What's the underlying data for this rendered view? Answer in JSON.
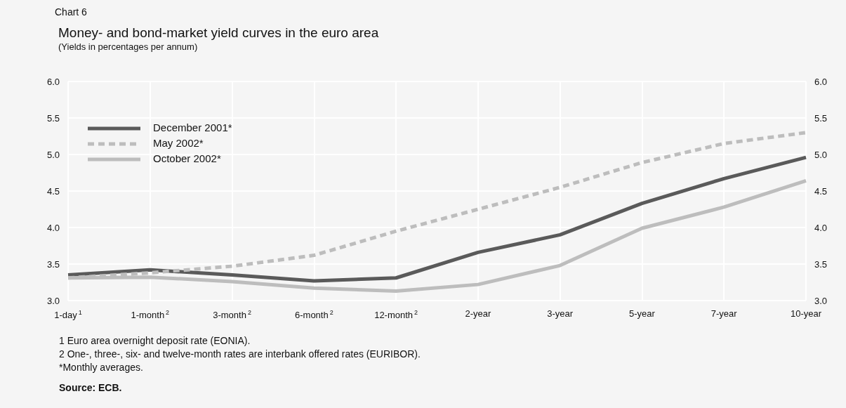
{
  "chart_data": {
    "type": "line",
    "title": "Money- and bond-market yield curves in the euro area",
    "subtitle": "(Yields in percentages per annum)",
    "categories": [
      "1-day$^{1}$",
      "1-month$^{2}$",
      "3-month$^{2}$",
      "6-month$^{2}$",
      "12-month$^{2}$",
      "2-year",
      "3-year",
      "5-year",
      "7-year",
      "10-year"
    ],
    "series": [
      {
        "name": "December 2001*",
        "color": "#5a5a5a",
        "line_style": "solid",
        "values": [
          3.35,
          3.42,
          3.35,
          3.27,
          3.31,
          3.66,
          3.9,
          4.33,
          4.67,
          4.96
        ]
      },
      {
        "name": "May 2002*",
        "color": "#bdbdbd",
        "line_style": "dashed",
        "values": [
          3.31,
          3.38,
          3.47,
          3.62,
          3.95,
          4.25,
          4.55,
          4.89,
          5.15,
          5.3
        ]
      },
      {
        "name": "October 2002*",
        "color": "#bdbdbd",
        "line_style": "solid",
        "values": [
          3.31,
          3.32,
          3.26,
          3.17,
          3.13,
          3.22,
          3.48,
          3.99,
          4.28,
          4.64
        ]
      }
    ],
    "ylim": [
      3.0,
      6.0
    ],
    "yticks": [
      {
        "value": 3.0,
        "label": "3.0"
      },
      {
        "value": 3.5,
        "label": "3.5"
      },
      {
        "value": 4.0,
        "label": "4.0"
      },
      {
        "value": 4.5,
        "label": "4.5"
      },
      {
        "value": 5.0,
        "label": "5.0"
      },
      {
        "value": 5.5,
        "label": "5.5"
      },
      {
        "value": 6.0,
        "label": "6.0"
      }
    ],
    "y2lim": [
      3.0,
      6.0
    ],
    "y2ticks": [
      {
        "value": 3.0,
        "label": "3.0"
      },
      {
        "value": 3.5,
        "label": "3.5"
      },
      {
        "value": 4.0,
        "label": "4.0"
      },
      {
        "value": 4.5,
        "label": "4.5"
      },
      {
        "value": 5.0,
        "label": "5.0"
      },
      {
        "value": 5.5,
        "label": "5.5"
      },
      {
        "value": 6.0,
        "label": "6.0"
      }
    ],
    "grid": true,
    "legend": "top left",
    "marker": "none",
    "annotations": [
      "Chart 6",
      "1 Euro area overnight deposit rate (EONIA).",
      "2 One-, three-, six- and twelve-month rates are interbank offered rates (EURIBOR).",
      "*Monthly averages.",
      "Source: ECB."
    ]
  }
}
